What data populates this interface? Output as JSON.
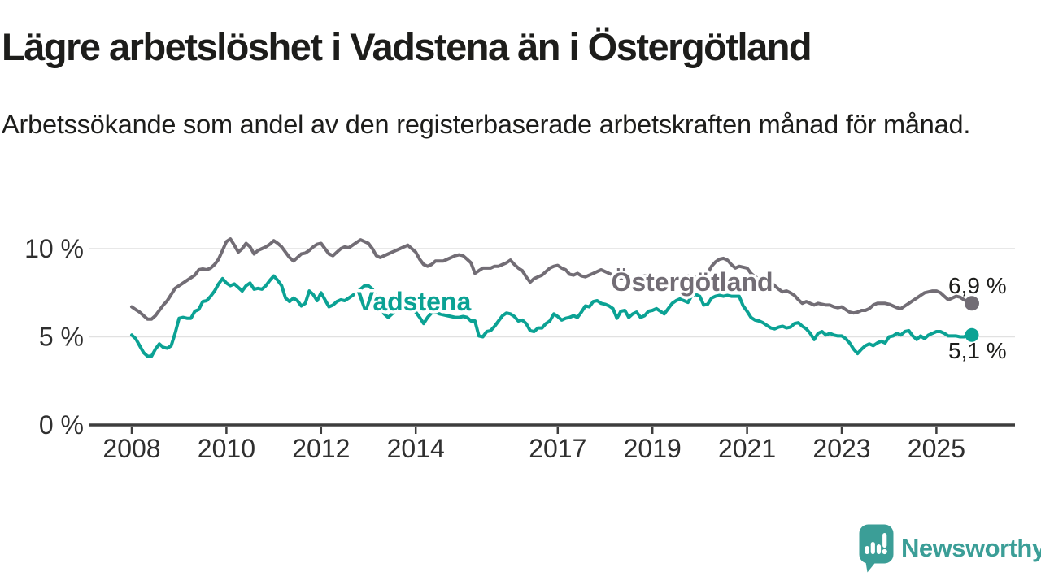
{
  "header": {
    "title": "Lägre arbetslöshet i Vadstena än i Östergötland",
    "subtitle": "Arbetssökande som andel av den registerbaserade arbetskraften månad för månad."
  },
  "footer": {
    "brand": "Newsworthy"
  },
  "colors": {
    "ostergotland": "#726d75",
    "vadstena": "#0ba294",
    "brand_teal": "#3b9e97",
    "grid": "#e1e1e1",
    "axis": "#3d3d3d",
    "text": "#1d1d1b"
  },
  "chart_data": {
    "type": "line",
    "title": "Lägre arbetslöshet i Vadstena än i Östergötland",
    "subtitle": "Arbetssökande som andel av den registerbaserade arbetskraften månad för månad.",
    "x_unit": "month",
    "x_range": [
      "2008-01",
      "2025-10"
    ],
    "ylim": [
      0,
      11.6
    ],
    "grid": "horizontal",
    "legend_position": "inline-labels",
    "y_ticks": [
      {
        "value": 0,
        "label": "0 %"
      },
      {
        "value": 5,
        "label": "5 %"
      },
      {
        "value": 10,
        "label": "10 %"
      }
    ],
    "x_ticks": [
      2008,
      2010,
      2012,
      2014,
      2017,
      2019,
      2021,
      2023,
      2025
    ],
    "series": [
      {
        "name": "Östergötland",
        "color": "#726d75",
        "end_label": "6,9 %",
        "last_value": 6.9,
        "values": [
          6.7,
          6.55,
          6.4,
          6.2,
          6.0,
          6.0,
          6.2,
          6.5,
          6.8,
          7.05,
          7.4,
          7.75,
          7.9,
          8.05,
          8.2,
          8.35,
          8.5,
          8.8,
          8.85,
          8.8,
          8.9,
          9.1,
          9.4,
          9.9,
          10.4,
          10.55,
          10.2,
          9.8,
          10.0,
          10.3,
          10.1,
          9.7,
          9.9,
          10.0,
          10.1,
          10.25,
          10.45,
          10.3,
          10.1,
          9.8,
          9.5,
          9.3,
          9.5,
          9.7,
          9.75,
          9.9,
          10.1,
          10.25,
          10.3,
          10.0,
          9.7,
          9.6,
          9.8,
          10.0,
          10.1,
          10.05,
          10.2,
          10.35,
          10.5,
          10.4,
          10.3,
          10.0,
          9.6,
          9.5,
          9.6,
          9.7,
          9.8,
          9.9,
          10.0,
          10.1,
          10.2,
          10.0,
          9.8,
          9.4,
          9.1,
          9.0,
          9.1,
          9.3,
          9.3,
          9.3,
          9.4,
          9.5,
          9.6,
          9.65,
          9.6,
          9.4,
          9.2,
          8.6,
          8.75,
          8.9,
          8.9,
          8.9,
          9.0,
          9.0,
          9.1,
          9.2,
          9.35,
          9.1,
          8.9,
          8.75,
          8.4,
          8.1,
          8.3,
          8.4,
          8.5,
          8.7,
          8.9,
          9.0,
          9.05,
          8.9,
          8.8,
          8.55,
          8.5,
          8.6,
          8.45,
          8.4,
          8.5,
          8.6,
          8.7,
          8.8,
          8.7,
          8.6,
          8.5,
          8.4,
          8.3,
          8.4,
          8.3,
          8.35,
          8.3,
          8.4,
          8.45,
          8.5,
          8.45,
          8.4,
          8.3,
          8.25,
          8.3,
          8.4,
          8.35,
          8.3,
          8.4,
          8.45,
          8.4,
          8.4,
          8.4,
          8.45,
          8.6,
          9.0,
          9.25,
          9.4,
          9.45,
          9.35,
          9.1,
          8.9,
          9.0,
          8.95,
          8.9,
          8.6,
          8.4,
          8.3,
          8.25,
          8.2,
          8.1,
          7.9,
          7.7,
          7.55,
          7.6,
          7.5,
          7.35,
          7.1,
          6.9,
          7.0,
          6.9,
          6.8,
          6.9,
          6.85,
          6.8,
          6.8,
          6.7,
          6.65,
          6.7,
          6.55,
          6.4,
          6.35,
          6.4,
          6.5,
          6.5,
          6.6,
          6.8,
          6.9,
          6.9,
          6.9,
          6.85,
          6.75,
          6.65,
          6.6,
          6.75,
          6.9,
          7.05,
          7.2,
          7.35,
          7.5,
          7.55,
          7.6,
          7.6,
          7.5,
          7.3,
          7.1,
          7.2,
          7.3,
          7.25,
          7.1,
          7.0,
          6.9
        ]
      },
      {
        "name": "Vadstena",
        "color": "#0ba294",
        "end_label": "5,1 %",
        "last_value": 5.1,
        "values": [
          5.1,
          4.9,
          4.5,
          4.1,
          3.9,
          3.9,
          4.3,
          4.6,
          4.4,
          4.35,
          4.5,
          5.2,
          6.05,
          6.1,
          6.05,
          6.05,
          6.45,
          6.55,
          7.0,
          7.05,
          7.3,
          7.6,
          8.0,
          8.3,
          8.05,
          7.9,
          8.0,
          7.8,
          7.6,
          7.9,
          8.05,
          7.7,
          7.75,
          7.7,
          7.9,
          8.2,
          8.45,
          8.2,
          7.9,
          7.2,
          7.0,
          7.2,
          7.05,
          6.75,
          6.9,
          7.6,
          7.4,
          7.05,
          7.5,
          7.1,
          6.7,
          6.8,
          7.0,
          7.1,
          7.05,
          7.2,
          7.35,
          7.5,
          7.7,
          7.9,
          7.9,
          7.7,
          7.3,
          6.8,
          6.3,
          6.1,
          6.3,
          6.5,
          6.6,
          6.65,
          6.7,
          6.6,
          6.4,
          6.1,
          5.75,
          6.1,
          6.35,
          6.4,
          6.3,
          6.25,
          6.2,
          6.15,
          6.1,
          6.1,
          6.15,
          6.1,
          5.9,
          5.9,
          5.05,
          5.0,
          5.3,
          5.35,
          5.6,
          5.9,
          6.2,
          6.35,
          6.3,
          6.15,
          5.9,
          5.95,
          5.75,
          5.35,
          5.3,
          5.5,
          5.5,
          5.75,
          5.9,
          6.3,
          6.15,
          5.95,
          6.05,
          6.1,
          6.2,
          6.1,
          6.4,
          6.75,
          6.7,
          7.0,
          7.05,
          6.9,
          6.85,
          6.75,
          6.6,
          6.05,
          6.45,
          6.5,
          6.1,
          6.3,
          6.4,
          6.1,
          6.2,
          6.45,
          6.5,
          6.6,
          6.45,
          6.3,
          6.6,
          6.9,
          7.05,
          7.15,
          7.05,
          6.95,
          7.35,
          7.4,
          7.3,
          6.8,
          6.85,
          7.2,
          7.3,
          7.35,
          7.3,
          7.35,
          7.3,
          7.3,
          7.3,
          6.75,
          6.45,
          6.1,
          5.95,
          5.9,
          5.8,
          5.65,
          5.5,
          5.45,
          5.55,
          5.6,
          5.5,
          5.55,
          5.75,
          5.8,
          5.6,
          5.45,
          5.2,
          4.85,
          5.2,
          5.3,
          5.1,
          5.2,
          5.1,
          5.05,
          5.05,
          4.9,
          4.65,
          4.3,
          4.05,
          4.3,
          4.5,
          4.6,
          4.5,
          4.65,
          4.75,
          4.65,
          5.0,
          5.05,
          5.2,
          5.1,
          5.3,
          5.35,
          5.05,
          4.85,
          5.05,
          4.9,
          5.1,
          5.2,
          5.3,
          5.3,
          5.2,
          5.05,
          5.05,
          5.05,
          5.0,
          5.0,
          5.1,
          5.1
        ]
      }
    ]
  }
}
